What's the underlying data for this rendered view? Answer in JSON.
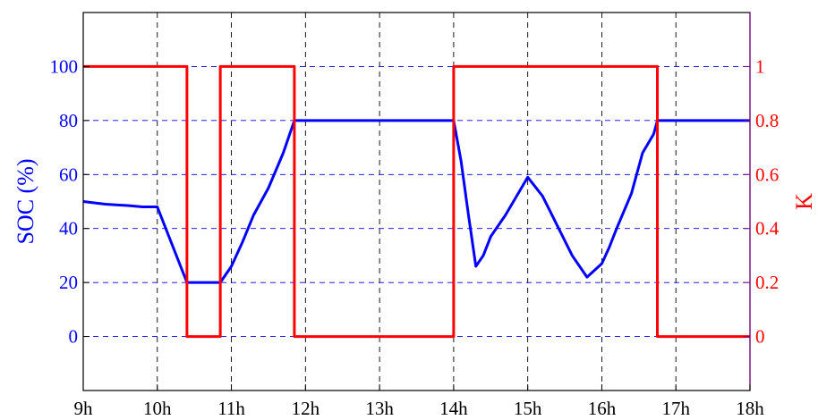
{
  "chart_data": {
    "type": "line",
    "title": "",
    "xlabel": "",
    "x_tick_labels": [
      "9h",
      "10h",
      "11h",
      "12h",
      "13h",
      "14h",
      "15h",
      "16h",
      "17h",
      "18h"
    ],
    "x_ticks": [
      9,
      10,
      11,
      12,
      13,
      14,
      15,
      16,
      17,
      18
    ],
    "xlim": [
      9,
      18
    ],
    "left_axis": {
      "label": "SOC (%)",
      "ylim": [
        -20,
        120
      ],
      "ticks": [
        0,
        20,
        40,
        60,
        80,
        100
      ],
      "tick_labels": [
        "0",
        "20",
        "40",
        "60",
        "80",
        "100"
      ],
      "color": "#0000ff"
    },
    "right_axis": {
      "label": "K",
      "ylim": [
        -0.2,
        1.2
      ],
      "ticks": [
        0,
        0.2,
        0.4,
        0.6,
        0.8,
        1
      ],
      "tick_labels": [
        "0",
        "0.2",
        "0.4",
        "0.6",
        "0.8",
        "1"
      ],
      "color": "#ff0000"
    },
    "grid": true,
    "series": [
      {
        "axis": "left",
        "color": "#0000ff",
        "x": [
          9,
          9.3,
          9.6,
          9.8,
          10,
          10.4,
          10.5,
          10.7,
          10.85,
          11.0,
          11.15,
          11.3,
          11.5,
          11.7,
          11.85,
          12.5,
          13,
          14,
          14.1,
          14.2,
          14.3,
          14.4,
          14.5,
          14.7,
          14.85,
          15.0,
          15.2,
          15.4,
          15.6,
          15.8,
          16.0,
          16.1,
          16.2,
          16.4,
          16.55,
          16.7,
          16.75,
          17,
          18
        ],
        "values": [
          50,
          49,
          48.5,
          48,
          48,
          20,
          20,
          20,
          20,
          26,
          35,
          45,
          55,
          68,
          80,
          80,
          80,
          80,
          65,
          45,
          26,
          30,
          37,
          45,
          52,
          59,
          52,
          41,
          30,
          22,
          27,
          33,
          40,
          53,
          68,
          75,
          80,
          80,
          80
        ]
      },
      {
        "axis": "right",
        "color": "#ff0000",
        "x": [
          9,
          10.4,
          10.4,
          10.85,
          10.85,
          11.85,
          11.85,
          14.0,
          14.0,
          16.75,
          16.75,
          18
        ],
        "values": [
          1,
          1,
          0,
          0,
          1,
          1,
          0,
          0,
          1,
          1,
          0,
          0
        ]
      }
    ]
  }
}
